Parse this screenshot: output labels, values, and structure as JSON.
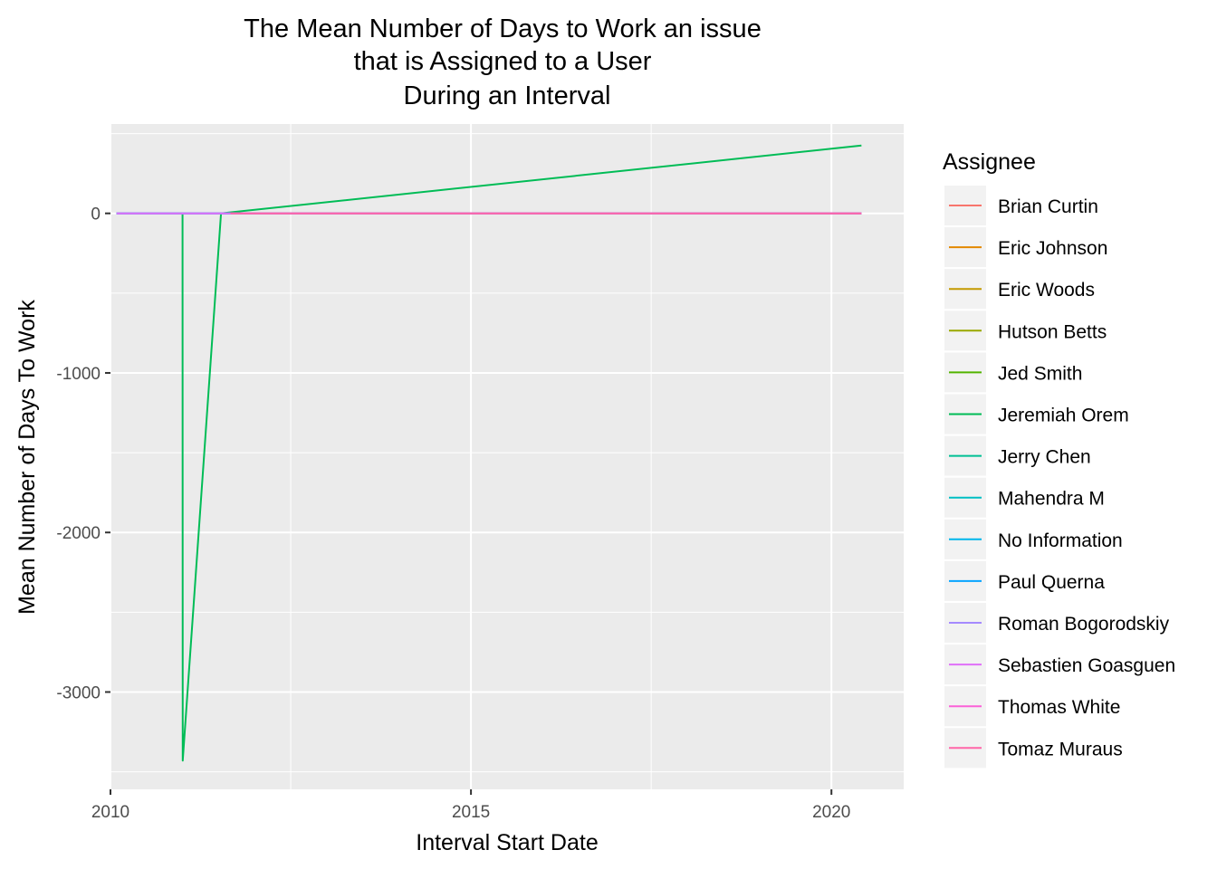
{
  "chart_data": {
    "type": "line",
    "title": [
      "The Mean Number of Days to Work an issue",
      "that is Assigned to a User",
      "During an Interval"
    ],
    "xlabel": "Interval Start Date",
    "ylabel": "Mean Number of Days To Work",
    "xlim": [
      "2010-01-01",
      "2021-01-01"
    ],
    "ylim": [
      -3610,
      560
    ],
    "x_ticks": [
      {
        "value": "2010-01-01",
        "label": "2010"
      },
      {
        "value": "2015-01-01",
        "label": "2015"
      },
      {
        "value": "2020-01-01",
        "label": "2020"
      }
    ],
    "y_ticks": [
      0,
      -1000,
      -2000,
      -3000
    ],
    "y_tick_labels": [
      "0",
      "-1000",
      "-2000",
      "-3000"
    ],
    "grid": true,
    "legend": {
      "title": "Assignee",
      "position": "right"
    },
    "series": [
      {
        "name": "Brian Curtin",
        "color": "#F8766D",
        "points": [
          [
            "2010-02-01",
            0
          ],
          [
            "2020-06-01",
            0
          ]
        ]
      },
      {
        "name": "Eric Johnson",
        "color": "#E38900",
        "points": [
          [
            "2010-02-01",
            0
          ],
          [
            "2020-06-01",
            0
          ]
        ]
      },
      {
        "name": "Eric Woods",
        "color": "#C49A00",
        "points": [
          [
            "2010-02-01",
            0
          ],
          [
            "2020-06-01",
            0
          ]
        ]
      },
      {
        "name": "Hutson Betts",
        "color": "#99A800",
        "points": [
          [
            "2010-02-01",
            0
          ],
          [
            "2020-06-01",
            0
          ]
        ]
      },
      {
        "name": "Jed Smith",
        "color": "#53B400",
        "points": [
          [
            "2010-02-01",
            0
          ],
          [
            "2020-06-01",
            0
          ]
        ]
      },
      {
        "name": "Jeremiah Orem",
        "color": "#00BC56",
        "points": [
          [
            "2010-02-01",
            0
          ],
          [
            "2011-01-01",
            0
          ],
          [
            "2011-01-02",
            -3430
          ],
          [
            "2011-07-15",
            0
          ],
          [
            "2020-06-01",
            425
          ]
        ]
      },
      {
        "name": "Jerry Chen",
        "color": "#00C094",
        "points": [
          [
            "2010-02-01",
            0
          ],
          [
            "2020-06-01",
            0
          ]
        ]
      },
      {
        "name": "Mahendra M",
        "color": "#00BFC4",
        "points": [
          [
            "2010-02-01",
            0
          ],
          [
            "2020-06-01",
            0
          ]
        ]
      },
      {
        "name": "No Information",
        "color": "#00B6EB",
        "points": [
          [
            "2010-02-01",
            0
          ],
          [
            "2020-06-01",
            0
          ]
        ]
      },
      {
        "name": "Paul Querna",
        "color": "#06A4FF",
        "points": [
          [
            "2010-02-01",
            0
          ],
          [
            "2020-06-01",
            0
          ]
        ]
      },
      {
        "name": "Roman Bogorodskiy",
        "color": "#A58AFF",
        "points": [
          [
            "2010-02-01",
            0
          ],
          [
            "2020-06-01",
            0
          ]
        ]
      },
      {
        "name": "Sebastien Goasguen",
        "color": "#DF70F8",
        "points": [
          [
            "2010-02-01",
            0
          ],
          [
            "2011-09-01",
            0
          ]
        ]
      },
      {
        "name": "Thomas White",
        "color": "#FB61D7",
        "points": [
          [
            "2011-09-01",
            0
          ],
          [
            "2020-06-01",
            0
          ]
        ]
      },
      {
        "name": "Tomaz Muraus",
        "color": "#FF66A8",
        "points": [
          [
            "2011-09-01",
            0
          ],
          [
            "2020-06-01",
            0
          ]
        ]
      }
    ]
  }
}
